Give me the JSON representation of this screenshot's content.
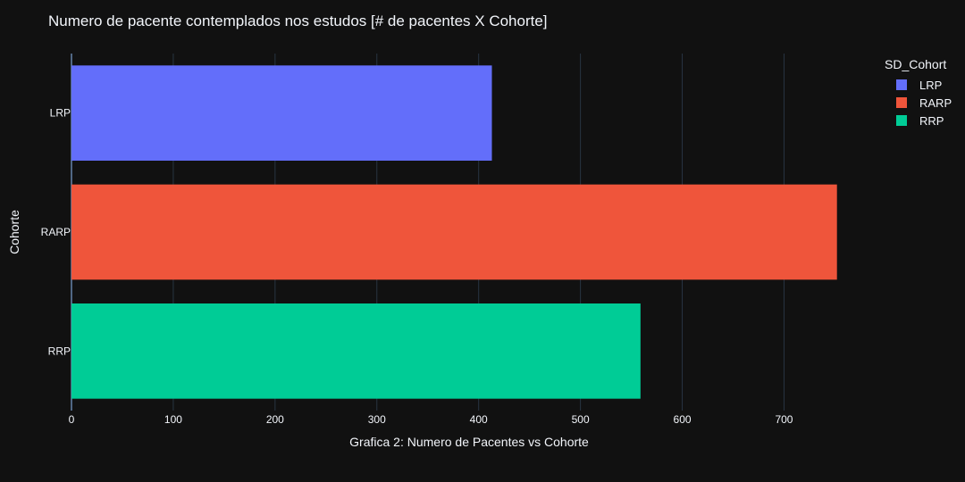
{
  "chart_data": {
    "type": "bar",
    "orientation": "horizontal",
    "title": "Numero de pacente contemplados nos estudos [# de pacentes X Cohorte]",
    "xlabel": "Grafica 2: Numero de Pacentes vs Cohorte",
    "ylabel": "Cohorte",
    "categories": [
      "LRP",
      "RARP",
      "RRP"
    ],
    "values": [
      413,
      752,
      559
    ],
    "colors": [
      "#636efa",
      "#ef553b",
      "#00cc96"
    ],
    "xlim": [
      0,
      790
    ],
    "xticks": [
      0,
      100,
      200,
      300,
      400,
      500,
      600,
      700
    ],
    "grid": true,
    "legend": {
      "title": "SD_Cohort",
      "placement": "top-right",
      "items": [
        "LRP",
        "RARP",
        "RRP"
      ]
    }
  }
}
